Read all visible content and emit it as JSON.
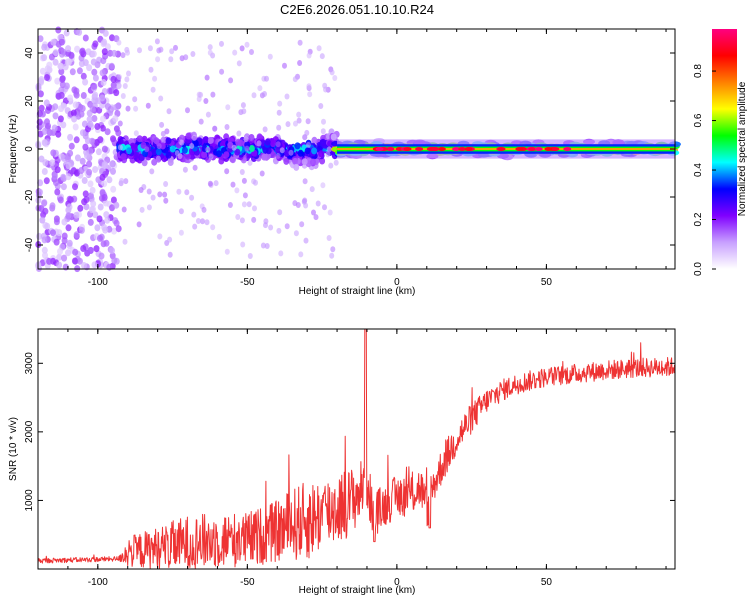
{
  "chart_data": [
    {
      "type": "heatmap",
      "title": "C2E6.2026.051.10.10.R24",
      "xlabel": "Height of straight line (km)",
      "ylabel": "Frequency (Hz)",
      "xlim": [
        -120,
        93
      ],
      "ylim": [
        -50,
        50
      ],
      "xticks": [
        -100,
        -50,
        0,
        50
      ],
      "xtick_labels": [
        "-100",
        "-50",
        "0",
        "50"
      ],
      "yticks": [
        -40,
        -20,
        0,
        20,
        40
      ],
      "ytick_labels": [
        "-40",
        "-20",
        "0",
        "20",
        "40"
      ],
      "colorbar": {
        "label": "Normalized spectral amplitude",
        "range": [
          0,
          0.97
        ],
        "ticks": [
          0.0,
          0.2,
          0.4,
          0.6,
          0.8
        ],
        "tick_labels": [
          "0.0",
          "0.2",
          "0.4",
          "0.6",
          "0.8"
        ],
        "colors": [
          "#ffffff",
          "#c8a0ff",
          "#8000ff",
          "#0000ff",
          "#00ffff",
          "#00ff00",
          "#ffff00",
          "#ff8000",
          "#ff0000",
          "#ff0080"
        ]
      },
      "regions": [
        {
          "x_range": [
            -120,
            -93
          ],
          "freq_spread": 50,
          "peak_amplitude": 0.2,
          "note": "broadband noise"
        },
        {
          "x_range": [
            -93,
            -20
          ],
          "freq_center": 0,
          "freq_spread": 6,
          "peak_amplitude": 0.45
        },
        {
          "x_range": [
            -20,
            93
          ],
          "freq_center": 0,
          "freq_spread": 2,
          "peak_amplitude": 0.9
        }
      ]
    },
    {
      "type": "line",
      "title": "",
      "xlabel": "Height of straight line (km)",
      "ylabel": "SNR (10 * v/v)",
      "xlim": [
        -120,
        93
      ],
      "ylim": [
        0,
        3500
      ],
      "xticks": [
        -100,
        -50,
        0,
        50
      ],
      "xtick_labels": [
        "-100",
        "-50",
        "0",
        "50"
      ],
      "yticks": [
        1000,
        2000,
        3000
      ],
      "ytick_labels": [
        "1000",
        "2000",
        "3000"
      ],
      "series": [
        {
          "name": "SNR",
          "color": "#ee3333",
          "x": [
            -120,
            -110,
            -100,
            -93,
            -90,
            -80,
            -70,
            -60,
            -50,
            -40,
            -35,
            -30,
            -25,
            -20,
            -15,
            -12,
            -10,
            -8,
            -5,
            -2,
            0,
            5,
            8,
            10,
            11,
            12,
            15,
            20,
            25,
            30,
            35,
            40,
            50,
            60,
            70,
            80,
            93
          ],
          "values": [
            120,
            130,
            140,
            150,
            250,
            300,
            380,
            420,
            430,
            550,
            650,
            700,
            800,
            900,
            1000,
            1150,
            1300,
            800,
            900,
            1000,
            1050,
            1100,
            1200,
            900,
            750,
            1200,
            1500,
            1900,
            2200,
            2450,
            2600,
            2700,
            2800,
            2850,
            2900,
            2930,
            2950
          ],
          "noise": [
            40,
            40,
            40,
            40,
            250,
            350,
            450,
            450,
            450,
            500,
            600,
            650,
            600,
            600,
            550,
            500,
            450,
            400,
            350,
            350,
            350,
            350,
            350,
            300,
            300,
            300,
            300,
            280,
            250,
            200,
            180,
            170,
            160,
            160,
            160,
            160,
            160
          ]
        }
      ],
      "annotations": [
        {
          "x": -10.5,
          "y": 3500,
          "type": "spike"
        },
        {
          "x": -7.5,
          "y": 400,
          "type": "dip"
        },
        {
          "x": 11,
          "y": 600,
          "type": "dip"
        }
      ]
    }
  ]
}
